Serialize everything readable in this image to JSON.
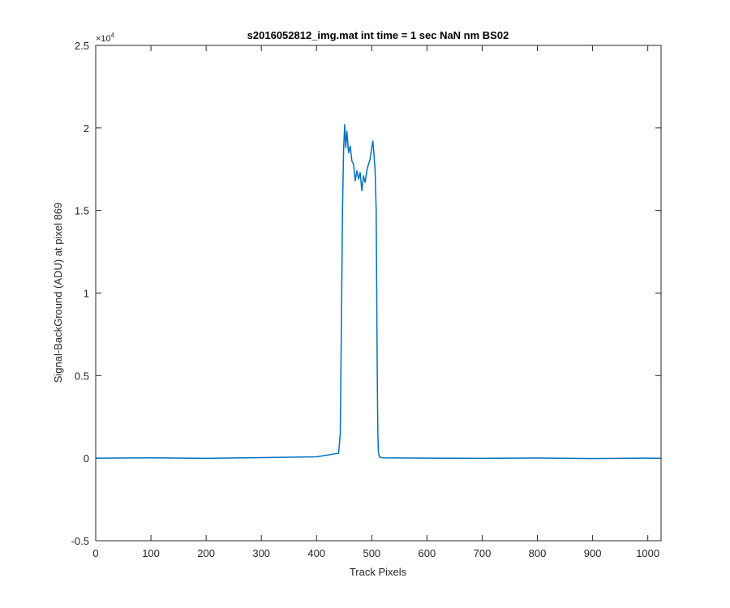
{
  "chart_data": {
    "type": "line",
    "title": "s2016052812_img.mat int time = 1 sec  NaN nm BS02",
    "xlabel": "Track Pixels",
    "ylabel": "Signal-BackGround (ADU) at pixel 869",
    "xlim": [
      0,
      1024
    ],
    "ylim": [
      -5000,
      25000
    ],
    "y_exponent_label": "×10",
    "y_exponent_power": "4",
    "x_ticks": [
      0,
      100,
      200,
      300,
      400,
      500,
      600,
      700,
      800,
      900,
      1000
    ],
    "x_tick_labels": [
      "0",
      "100",
      "200",
      "300",
      "400",
      "500",
      "600",
      "700",
      "800",
      "900",
      "1000"
    ],
    "y_ticks": [
      -5000,
      0,
      5000,
      10000,
      15000,
      20000,
      25000
    ],
    "y_tick_labels": [
      "-0.5",
      "0",
      "0.5",
      "1",
      "1.5",
      "2",
      "2.5"
    ],
    "grid": false,
    "series_color": "#0072BD",
    "series": [
      {
        "x": [
          1,
          100,
          200,
          300,
          400,
          440,
          443,
          445,
          447,
          449,
          451,
          453,
          455,
          458,
          461,
          464,
          467,
          470,
          473,
          476,
          479,
          482,
          485,
          488,
          491,
          494,
          497,
          500,
          502,
          504,
          506,
          508,
          509,
          510,
          511,
          512,
          514,
          520,
          600,
          700,
          800,
          900,
          1000,
          1024
        ],
        "y": [
          0,
          20,
          -10,
          30,
          80,
          300,
          1500,
          8000,
          15000,
          18700,
          20200,
          18800,
          19800,
          18500,
          18900,
          18000,
          17800,
          16800,
          17400,
          16900,
          17300,
          16200,
          17100,
          16700,
          17400,
          17800,
          18100,
          18800,
          19200,
          18400,
          17500,
          15000,
          10000,
          5000,
          1500,
          400,
          60,
          20,
          0,
          -10,
          10,
          -20,
          0,
          -10
        ]
      }
    ]
  }
}
